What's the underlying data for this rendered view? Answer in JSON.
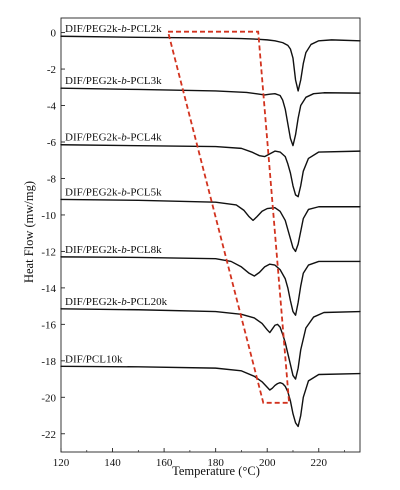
{
  "chart_data": {
    "type": "line",
    "xlabel": "Temperature (°C)",
    "ylabel": "Heat Flow (mw/mg)",
    "xlim": [
      120,
      236
    ],
    "ylim": [
      -23,
      0.8
    ],
    "xticks": [
      120,
      140,
      160,
      180,
      200,
      220
    ],
    "yticks": [
      0,
      -2,
      -4,
      -6,
      -8,
      -10,
      -12,
      -14,
      -16,
      -18,
      -20,
      -22
    ],
    "line_color": "#111111",
    "highlight_color": "#d2321e",
    "series": [
      {
        "name": "DIF/PEG2k-b-PCL2k",
        "label_parts": [
          {
            "text": "DIF/PEG2k-",
            "italic": false
          },
          {
            "text": "b",
            "italic": true
          },
          {
            "text": "-PCL2k",
            "italic": false
          }
        ],
        "x": [
          120,
          150,
          180,
          190,
          196,
          200,
          203,
          206,
          208,
          209,
          210,
          211,
          212,
          213,
          214,
          215,
          217,
          220,
          225,
          236
        ],
        "y": [
          -0.2,
          -0.26,
          -0.3,
          -0.33,
          -0.36,
          -0.4,
          -0.45,
          -0.55,
          -0.7,
          -0.9,
          -1.4,
          -2.6,
          -3.2,
          -2.6,
          -1.7,
          -1.1,
          -0.65,
          -0.45,
          -0.4,
          -0.45
        ]
      },
      {
        "name": "DIF/PEG2k-b-PCL3k",
        "label_parts": [
          {
            "text": "DIF/PEG2k-",
            "italic": false
          },
          {
            "text": "b",
            "italic": true
          },
          {
            "text": "-PCL3k",
            "italic": false
          }
        ],
        "x": [
          120,
          150,
          180,
          192,
          196,
          199,
          201,
          203,
          205,
          206,
          207,
          208,
          209,
          210,
          211,
          212,
          213,
          215,
          218,
          222,
          236
        ],
        "y": [
          -3.05,
          -3.12,
          -3.2,
          -3.28,
          -3.36,
          -3.42,
          -3.38,
          -3.35,
          -3.45,
          -3.7,
          -4.2,
          -5.0,
          -5.8,
          -6.2,
          -5.6,
          -4.7,
          -4.0,
          -3.55,
          -3.35,
          -3.3,
          -3.32
        ]
      },
      {
        "name": "DIF/PEG2k-b-PCL4k",
        "label_parts": [
          {
            "text": "DIF/PEG2k-",
            "italic": false
          },
          {
            "text": "b",
            "italic": true
          },
          {
            "text": "-PCL4k",
            "italic": false
          }
        ],
        "x": [
          120,
          150,
          180,
          190,
          194,
          197,
          199,
          201,
          203,
          205,
          207,
          208,
          209,
          210,
          211,
          212,
          213,
          214,
          216,
          220,
          236
        ],
        "y": [
          -6.15,
          -6.2,
          -6.25,
          -6.35,
          -6.55,
          -6.75,
          -6.8,
          -6.65,
          -6.5,
          -6.55,
          -6.8,
          -7.2,
          -7.7,
          -8.4,
          -8.9,
          -9.0,
          -8.4,
          -7.6,
          -6.9,
          -6.55,
          -6.5
        ]
      },
      {
        "name": "DIF/PEG2k-b-PCL5k",
        "label_parts": [
          {
            "text": "DIF/PEG2k-",
            "italic": false
          },
          {
            "text": "b",
            "italic": true
          },
          {
            "text": "-PCL5k",
            "italic": false
          }
        ],
        "x": [
          120,
          150,
          180,
          188,
          191,
          193,
          194.5,
          196,
          198,
          200,
          203,
          205,
          207,
          208,
          209,
          210,
          211,
          212,
          213,
          214,
          216,
          220,
          236
        ],
        "y": [
          -9.15,
          -9.2,
          -9.3,
          -9.45,
          -9.75,
          -10.1,
          -10.3,
          -10.1,
          -9.8,
          -9.65,
          -9.6,
          -9.8,
          -10.3,
          -10.8,
          -11.3,
          -11.8,
          -12.0,
          -11.6,
          -10.9,
          -10.2,
          -9.7,
          -9.55,
          -9.55
        ]
      },
      {
        "name": "DIF/PEG2k-b-PCL8k",
        "label_parts": [
          {
            "text": "DIF/PEG2k-",
            "italic": false
          },
          {
            "text": "b",
            "italic": true
          },
          {
            "text": "-PCL8k",
            "italic": false
          }
        ],
        "x": [
          120,
          150,
          180,
          186,
          190,
          193,
          195,
          197,
          199,
          201,
          203,
          205,
          207,
          208,
          209,
          210,
          211,
          212,
          213,
          214,
          216,
          220,
          236
        ],
        "y": [
          -12.3,
          -12.33,
          -12.4,
          -12.55,
          -12.85,
          -13.2,
          -13.35,
          -13.15,
          -12.85,
          -12.7,
          -12.75,
          -13.0,
          -13.5,
          -14.0,
          -14.7,
          -15.3,
          -15.5,
          -14.8,
          -13.9,
          -13.2,
          -12.75,
          -12.55,
          -12.55
        ]
      },
      {
        "name": "DIF/PEG2k-b-PCL20k",
        "label_parts": [
          {
            "text": "DIF/PEG2k-",
            "italic": false
          },
          {
            "text": "b",
            "italic": true
          },
          {
            "text": "-PCL20k",
            "italic": false
          }
        ],
        "x": [
          120,
          150,
          180,
          190,
          195,
          198,
          200,
          201,
          202,
          203,
          204,
          205,
          206,
          207,
          208,
          209,
          210,
          211,
          212,
          213,
          215,
          218,
          222,
          236
        ],
        "y": [
          -15.15,
          -15.2,
          -15.3,
          -15.45,
          -15.65,
          -15.95,
          -16.3,
          -16.45,
          -16.25,
          -16.05,
          -16.0,
          -16.15,
          -16.55,
          -17.0,
          -17.6,
          -18.2,
          -18.8,
          -19.0,
          -18.4,
          -17.4,
          -16.2,
          -15.6,
          -15.35,
          -15.3
        ]
      },
      {
        "name": "DIF/PCL10k",
        "label_parts": [
          {
            "text": "DIF/PCL10k",
            "italic": false
          }
        ],
        "x": [
          120,
          150,
          180,
          190,
          195,
          198,
          200,
          201,
          202,
          203,
          204,
          205,
          206,
          207,
          208,
          209,
          210,
          211,
          212,
          213,
          214,
          216,
          220,
          236
        ],
        "y": [
          -18.3,
          -18.33,
          -18.4,
          -18.55,
          -18.85,
          -19.15,
          -19.45,
          -19.6,
          -19.5,
          -19.35,
          -19.25,
          -19.2,
          -19.25,
          -19.4,
          -19.7,
          -20.2,
          -20.9,
          -21.4,
          -21.6,
          -21.0,
          -20.0,
          -19.1,
          -18.75,
          -18.7
        ]
      }
    ],
    "highlight_box": {
      "points": [
        [
          161.5,
          0.05
        ],
        [
          196.5,
          0.05
        ],
        [
          208.5,
          -20.3
        ],
        [
          198.5,
          -20.3
        ]
      ]
    }
  }
}
